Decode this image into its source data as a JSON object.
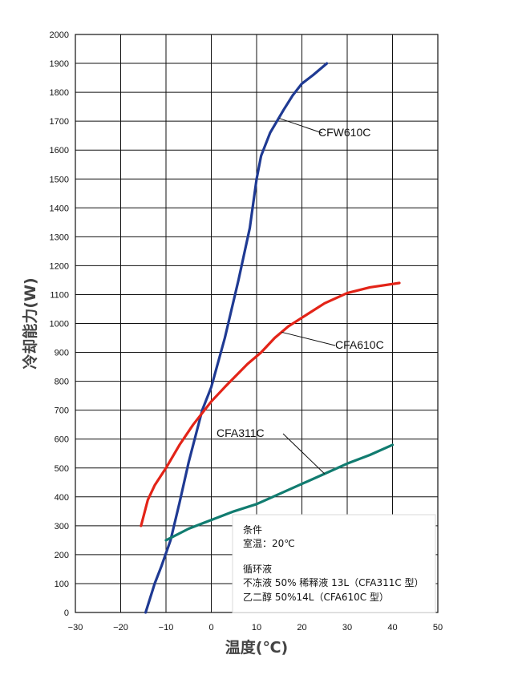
{
  "chart_data": {
    "type": "line",
    "xlabel": "温度(℃)",
    "ylabel": "冷却能力(W)",
    "xlim": [
      -30,
      50
    ],
    "ylim": [
      0,
      2000
    ],
    "xticks": [
      "−30",
      "−20",
      "−10",
      "0",
      "10",
      "20",
      "30",
      "40",
      "50"
    ],
    "yticks": [
      "0",
      "100",
      "200",
      "300",
      "400",
      "500",
      "600",
      "700",
      "800",
      "900",
      "1000",
      "1100",
      "1200",
      "1300",
      "1400",
      "1500",
      "1600",
      "1700",
      "1800",
      "1900",
      "2000"
    ],
    "grid": true,
    "series": [
      {
        "name": "CFW610C",
        "color": "#1f3a93",
        "points": [
          [
            -14.5,
            0
          ],
          [
            -12.5,
            100
          ],
          [
            -11,
            160
          ],
          [
            -9,
            250
          ],
          [
            -7,
            380
          ],
          [
            -5,
            520
          ],
          [
            -2,
            700
          ],
          [
            0,
            780
          ],
          [
            3,
            950
          ],
          [
            6,
            1150
          ],
          [
            8.5,
            1330
          ],
          [
            10,
            1500
          ],
          [
            11,
            1580
          ],
          [
            13,
            1660
          ],
          [
            16,
            1740
          ],
          [
            18,
            1790
          ],
          [
            20,
            1830
          ],
          [
            22.5,
            1860
          ],
          [
            25.5,
            1900
          ]
        ]
      },
      {
        "name": "CFA610C",
        "color": "#e32418",
        "points": [
          [
            -15.5,
            300
          ],
          [
            -14,
            390
          ],
          [
            -12.5,
            440
          ],
          [
            -10,
            500
          ],
          [
            -7,
            580
          ],
          [
            -4,
            650
          ],
          [
            0,
            730
          ],
          [
            3,
            780
          ],
          [
            8,
            860
          ],
          [
            11,
            900
          ],
          [
            14,
            950
          ],
          [
            17,
            990
          ],
          [
            20,
            1020
          ],
          [
            25,
            1070
          ],
          [
            30,
            1105
          ],
          [
            35,
            1125
          ],
          [
            41.5,
            1140
          ]
        ]
      },
      {
        "name": "CFA311C",
        "color": "#117c70",
        "points": [
          [
            -10,
            250
          ],
          [
            -5,
            290
          ],
          [
            0,
            320
          ],
          [
            5,
            350
          ],
          [
            10,
            375
          ],
          [
            15,
            410
          ],
          [
            20,
            445
          ],
          [
            25,
            480
          ],
          [
            30,
            515
          ],
          [
            35,
            545
          ],
          [
            40,
            580
          ]
        ]
      }
    ],
    "annotations": {
      "conditions_title": "条件",
      "room_temp": "室温：20℃",
      "coolant_title": "循环液",
      "coolant_line1": "不冻液 50% 稀释液 13L（CFA311C 型）",
      "coolant_line2": "乙二醇 50%14L（CFA610C 型）"
    }
  }
}
